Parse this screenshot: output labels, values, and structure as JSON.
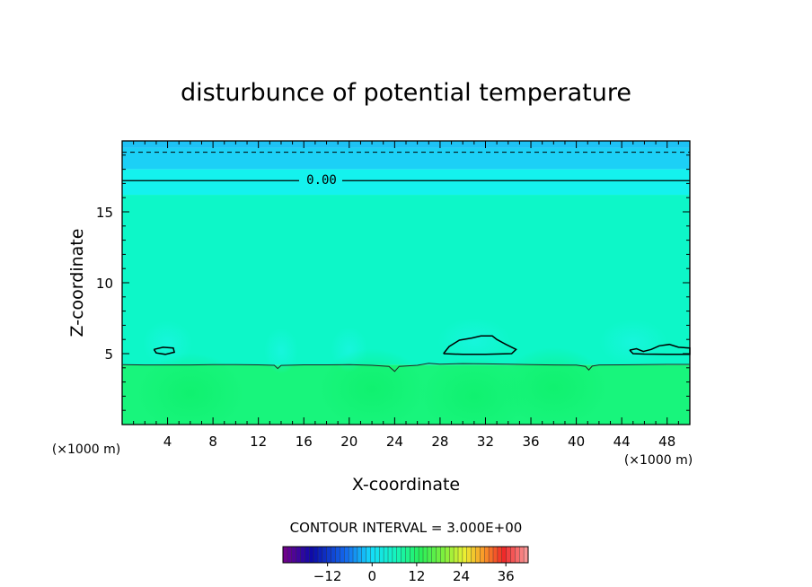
{
  "chart_data": {
    "type": "heatmap",
    "title": "disturbunce of potential temperature",
    "xlabel": "X-coordinate",
    "ylabel": "Z-coordinate",
    "x_unit": "(×1000 m)",
    "y_unit": "(×1000 m)",
    "xlim": [
      0,
      50
    ],
    "ylim": [
      0,
      20
    ],
    "x_ticks": [
      "4",
      "8",
      "12",
      "16",
      "20",
      "24",
      "28",
      "32",
      "36",
      "40",
      "44",
      "48"
    ],
    "y_ticks": [
      "5",
      "10",
      "15"
    ],
    "contour_label": "0.00",
    "contour_interval_text": "CONTOUR INTERVAL = 3.000E+00",
    "colorbar_ticks": [
      "−12",
      "0",
      "12",
      "24",
      "36"
    ],
    "colorbar_range": [
      -24,
      42
    ],
    "field_bands": [
      {
        "z_from": 19.5,
        "z_to": 20.0,
        "color": "#1ec2f5"
      },
      {
        "z_from": 18.0,
        "z_to": 19.5,
        "color": "#1cd0f6"
      },
      {
        "z_from": 16.2,
        "z_to": 18.0,
        "color": "#14f2ee"
      },
      {
        "z_from": 4.2,
        "z_to": 16.2,
        "color": "#0df7c8"
      },
      {
        "z_from": 0.0,
        "z_to": 4.2,
        "color": "#18f57c"
      }
    ],
    "zero_contour_z": 17.2,
    "dashed_contour_z": 19.2,
    "boundary_contour": [
      [
        0,
        4.22
      ],
      [
        2,
        4.2
      ],
      [
        4,
        4.2
      ],
      [
        6,
        4.2
      ],
      [
        8,
        4.22
      ],
      [
        10,
        4.22
      ],
      [
        12,
        4.21
      ],
      [
        13.4,
        4.18
      ],
      [
        13.7,
        3.95
      ],
      [
        14,
        4.17
      ],
      [
        16,
        4.21
      ],
      [
        18,
        4.21
      ],
      [
        20,
        4.22
      ],
      [
        22,
        4.18
      ],
      [
        23.5,
        4.1
      ],
      [
        24,
        3.75
      ],
      [
        24.4,
        4.1
      ],
      [
        26,
        4.18
      ],
      [
        27,
        4.32
      ],
      [
        28,
        4.26
      ],
      [
        30,
        4.3
      ],
      [
        32,
        4.28
      ],
      [
        34,
        4.26
      ],
      [
        36,
        4.22
      ],
      [
        38,
        4.2
      ],
      [
        40,
        4.19
      ],
      [
        40.8,
        4.1
      ],
      [
        41.1,
        3.85
      ],
      [
        41.4,
        4.12
      ],
      [
        42,
        4.2
      ],
      [
        44,
        4.21
      ],
      [
        46,
        4.22
      ],
      [
        48,
        4.24
      ],
      [
        50,
        4.24
      ]
    ],
    "closed_contours": [
      [
        [
          2.8,
          5.3
        ],
        [
          3.6,
          5.45
        ],
        [
          4.5,
          5.4
        ],
        [
          4.6,
          5.1
        ],
        [
          3.8,
          4.95
        ],
        [
          3.0,
          5.05
        ],
        [
          2.8,
          5.3
        ]
      ],
      [
        [
          28.3,
          5.0
        ],
        [
          28.8,
          5.5
        ],
        [
          29.7,
          5.95
        ],
        [
          30.8,
          6.1
        ],
        [
          31.6,
          6.25
        ],
        [
          32.6,
          6.25
        ],
        [
          33.0,
          6.0
        ],
        [
          33.8,
          5.65
        ],
        [
          34.7,
          5.3
        ],
        [
          34.3,
          5.0
        ],
        [
          32.0,
          4.95
        ],
        [
          30.0,
          4.95
        ],
        [
          28.3,
          5.0
        ]
      ],
      [
        [
          44.7,
          5.25
        ],
        [
          45.3,
          5.35
        ],
        [
          45.9,
          5.15
        ],
        [
          46.6,
          5.3
        ],
        [
          47.3,
          5.55
        ],
        [
          48.2,
          5.65
        ],
        [
          49.0,
          5.45
        ],
        [
          50.0,
          5.4
        ],
        [
          50.0,
          4.95
        ],
        [
          48.0,
          4.95
        ],
        [
          46.0,
          4.97
        ],
        [
          45.0,
          5.0
        ],
        [
          44.7,
          5.25
        ]
      ]
    ],
    "grid": false,
    "legend": "colorbar-bottom"
  }
}
